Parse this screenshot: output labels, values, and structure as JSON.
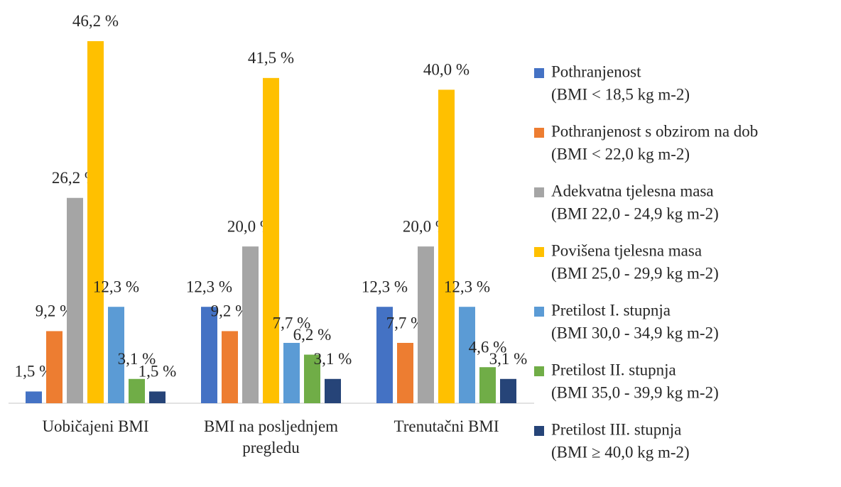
{
  "chart_data": {
    "type": "bar",
    "categories": [
      "Uobičajeni BMI",
      "BMI na posljednjem pregledu",
      "Trenutačni BMI"
    ],
    "series": [
      {
        "name": "Pothranjenost",
        "range": "(BMI < 18,5 kg m-2)",
        "color": "#4472c4",
        "values": [
          1.5,
          12.3,
          12.3
        ],
        "value_labels": [
          "1,5 %",
          "12,3 %",
          "12,3 %"
        ]
      },
      {
        "name": "Pothranjenost s obzirom na dob",
        "range": "(BMI < 22,0 kg m-2)",
        "color": "#ed7d31",
        "values": [
          9.2,
          9.2,
          7.7
        ],
        "value_labels": [
          "9,2 %",
          "9,2 %",
          "7,7 %"
        ]
      },
      {
        "name": "Adekvatna tjelesna masa",
        "range": "(BMI 22,0 - 24,9 kg m-2)",
        "color": "#a5a5a5",
        "values": [
          26.2,
          20.0,
          20.0
        ],
        "value_labels": [
          "26,2 %",
          "20,0 %",
          "20,0 %"
        ]
      },
      {
        "name": "Povišena tjelesna masa",
        "range": "(BMI 25,0 - 29,9 kg m-2)",
        "color": "#ffc000",
        "values": [
          46.2,
          41.5,
          40.0
        ],
        "value_labels": [
          "46,2 %",
          "41,5 %",
          "40,0 %"
        ]
      },
      {
        "name": "Pretilost I. stupnja",
        "range": "(BMI 30,0 - 34,9 kg m-2)",
        "color": "#5b9bd5",
        "values": [
          12.3,
          7.7,
          12.3
        ],
        "value_labels": [
          "12,3 %",
          "7,7 %",
          "12,3 %"
        ]
      },
      {
        "name": "Pretilost II. stupnja",
        "range": "(BMI 35,0 - 39,9 kg m-2)",
        "color": "#70ad47",
        "values": [
          3.1,
          6.2,
          4.6
        ],
        "value_labels": [
          "3,1 %",
          "6,2 %",
          "4,6 %"
        ]
      },
      {
        "name": "Pretilost III. stupnja",
        "range": "(BMI ≥ 40,0 kg m-2)",
        "color": "#264478",
        "values": [
          1.5,
          3.1,
          3.1
        ],
        "value_labels": [
          "1,5 %",
          "3,1 %",
          "3,1 %"
        ]
      }
    ]
  }
}
